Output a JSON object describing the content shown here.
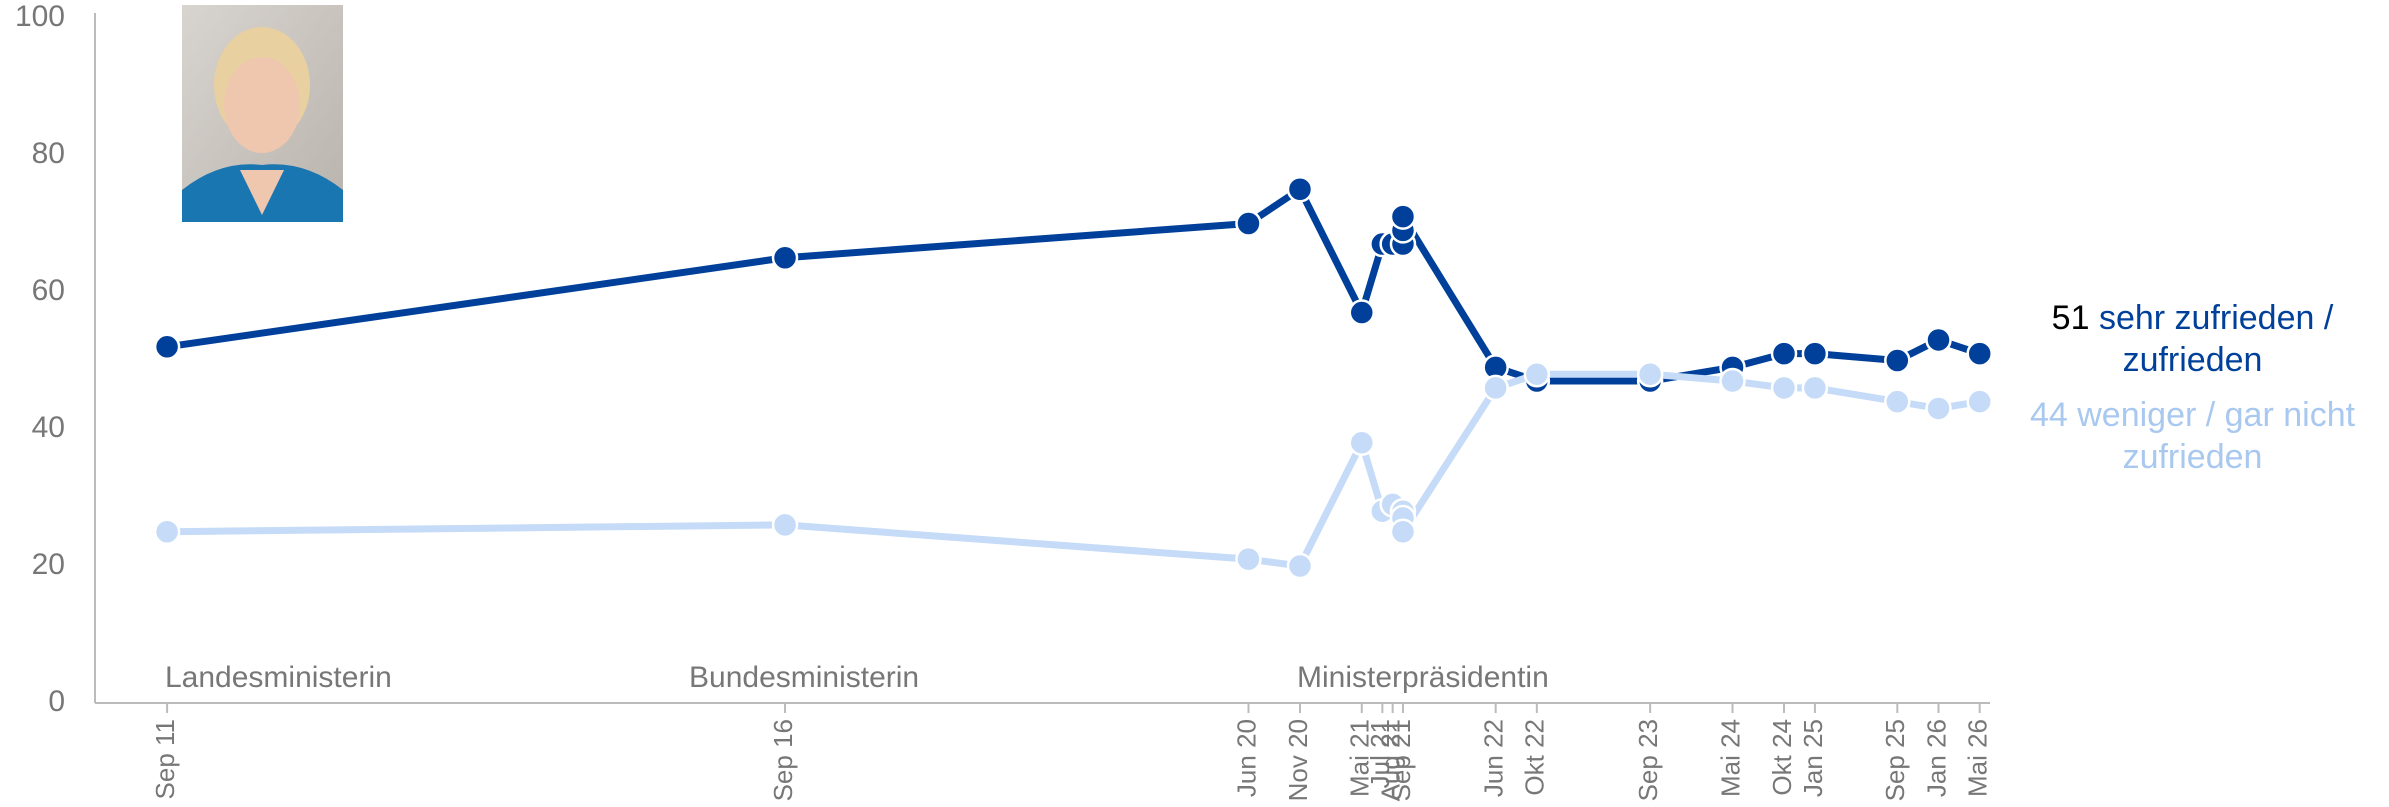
{
  "chart_data": {
    "type": "line",
    "x": [
      "2011-09",
      "2016-09",
      "2020-06",
      "2020-11",
      "2021-05",
      "2021-07",
      "2021-08",
      "2021-09",
      "2021-09",
      "2021-09",
      "2022-06",
      "2022-10",
      "2023-09",
      "2024-05",
      "2024-10",
      "2025-01",
      "2025-09",
      "2026-01",
      "2026-05"
    ],
    "series": [
      {
        "name": "sehr zufrieden / zufrieden",
        "color": "#00409a",
        "values": [
          52,
          65,
          70,
          75,
          57,
          67,
          67,
          67,
          69,
          71,
          49,
          47,
          47,
          49,
          51,
          51,
          50,
          53,
          51
        ]
      },
      {
        "name": "weniger / gar nicht zufrieden",
        "color": "#c5dbf7",
        "values": [
          25,
          26,
          21,
          20,
          38,
          28,
          29,
          28,
          27,
          25,
          46,
          48,
          48,
          47,
          46,
          46,
          44,
          43,
          44
        ]
      }
    ],
    "xlim": [
      "2011-02",
      "2026-06"
    ],
    "xticks": [
      {
        "value": "2011-09",
        "label": "Sep 11"
      },
      {
        "value": "2016-09",
        "label": "Sep 16"
      },
      {
        "value": "2020-06",
        "label": "Jun 20"
      },
      {
        "value": "2020-11",
        "label": "Nov 20"
      },
      {
        "value": "2021-05",
        "label": "Mai 21"
      },
      {
        "value": "2021-07",
        "label": "Jul 21"
      },
      {
        "value": "2021-08",
        "label": "Aug 21"
      },
      {
        "value": "2021-09",
        "label": "Sep 21"
      },
      {
        "value": "2022-06",
        "label": "Jun 22"
      },
      {
        "value": "2022-10",
        "label": "Okt 22"
      },
      {
        "value": "2023-09",
        "label": "Sep 23"
      },
      {
        "value": "2024-05",
        "label": "Mai 24"
      },
      {
        "value": "2024-10",
        "label": "Okt 24"
      },
      {
        "value": "2025-01",
        "label": "Jan 25"
      },
      {
        "value": "2025-09",
        "label": "Sep 25"
      },
      {
        "value": "2026-01",
        "label": "Jan 26"
      },
      {
        "value": "2026-05",
        "label": "Mai 26"
      }
    ],
    "ylim": [
      0,
      100
    ],
    "yticks": [
      0,
      20,
      40,
      60,
      80,
      100
    ],
    "grid": false,
    "annotations": [
      "Landesministerin",
      "Bundesministerin",
      "Ministerpräsidentin"
    ]
  }
}
